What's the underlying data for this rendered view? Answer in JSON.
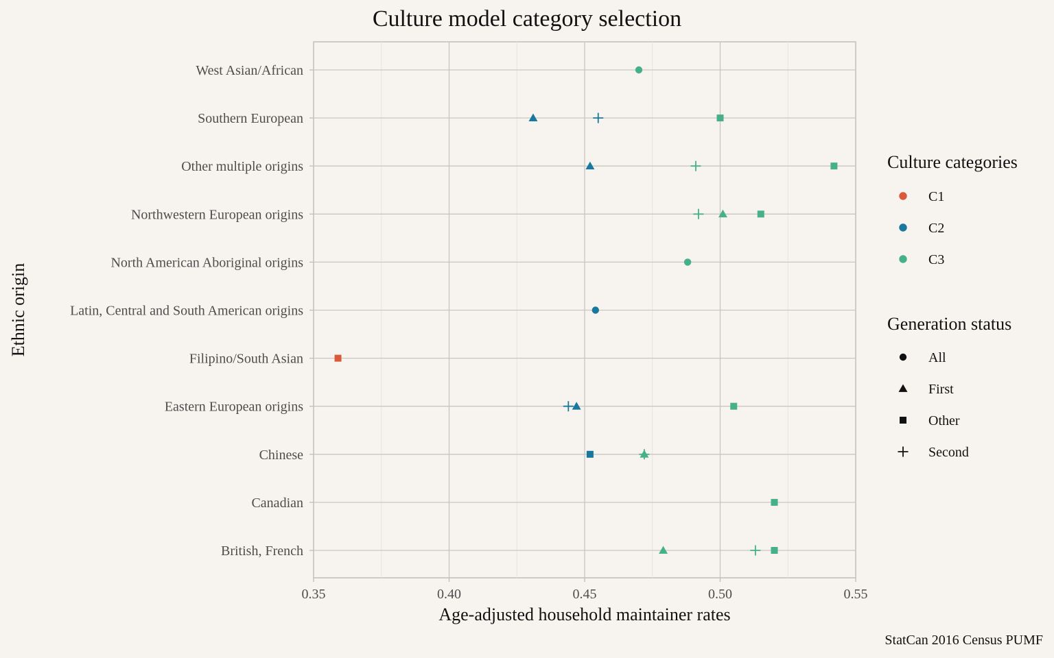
{
  "chart_data": {
    "type": "scatter",
    "title": "Culture model category selection",
    "xlabel": "Age-adjusted household maintainer rates",
    "ylabel": "Ethnic origin",
    "caption": "StatCan 2016 Census PUMF",
    "xlim": [
      0.35,
      0.55
    ],
    "xticks": [
      0.35,
      0.4,
      0.45,
      0.5,
      0.55
    ],
    "xtick_labels": [
      "0.35",
      "0.40",
      "0.45",
      "0.50",
      "0.55"
    ],
    "grid": true,
    "legend_position": "right",
    "categories": [
      "British, French",
      "Canadian",
      "Chinese",
      "Eastern European origins",
      "Filipino/South Asian",
      "Latin, Central and South American origins",
      "North American Aboriginal origins",
      "Northwestern European origins",
      "Other multiple origins",
      "Southern European",
      "West Asian/African"
    ],
    "color_legend": {
      "title": "Culture categories",
      "items": [
        {
          "name": "C1",
          "color": "#d9593a"
        },
        {
          "name": "C2",
          "color": "#19789e"
        },
        {
          "name": "C3",
          "color": "#45b08a"
        }
      ]
    },
    "shape_legend": {
      "title": "Generation status",
      "items": [
        {
          "name": "All",
          "shape": "circle"
        },
        {
          "name": "First",
          "shape": "triangle"
        },
        {
          "name": "Other",
          "shape": "square"
        },
        {
          "name": "Second",
          "shape": "plus"
        }
      ]
    },
    "points": [
      {
        "category": "West Asian/African",
        "x": 0.47,
        "culture": "C3",
        "generation": "All"
      },
      {
        "category": "Southern European",
        "x": 0.431,
        "culture": "C2",
        "generation": "First"
      },
      {
        "category": "Southern European",
        "x": 0.455,
        "culture": "C2",
        "generation": "Second"
      },
      {
        "category": "Southern European",
        "x": 0.5,
        "culture": "C3",
        "generation": "Other"
      },
      {
        "category": "Other multiple origins",
        "x": 0.452,
        "culture": "C2",
        "generation": "First"
      },
      {
        "category": "Other multiple origins",
        "x": 0.491,
        "culture": "C3",
        "generation": "Second"
      },
      {
        "category": "Other multiple origins",
        "x": 0.542,
        "culture": "C3",
        "generation": "Other"
      },
      {
        "category": "Northwestern European origins",
        "x": 0.492,
        "culture": "C3",
        "generation": "Second"
      },
      {
        "category": "Northwestern European origins",
        "x": 0.501,
        "culture": "C3",
        "generation": "First"
      },
      {
        "category": "Northwestern European origins",
        "x": 0.515,
        "culture": "C3",
        "generation": "Other"
      },
      {
        "category": "North American Aboriginal origins",
        "x": 0.488,
        "culture": "C3",
        "generation": "All"
      },
      {
        "category": "Latin, Central and South American origins",
        "x": 0.454,
        "culture": "C2",
        "generation": "All"
      },
      {
        "category": "Filipino/South Asian",
        "x": 0.359,
        "culture": "C1",
        "generation": "Other"
      },
      {
        "category": "Eastern European origins",
        "x": 0.444,
        "culture": "C2",
        "generation": "Second"
      },
      {
        "category": "Eastern European origins",
        "x": 0.447,
        "culture": "C2",
        "generation": "First"
      },
      {
        "category": "Eastern European origins",
        "x": 0.505,
        "culture": "C3",
        "generation": "Other"
      },
      {
        "category": "Chinese",
        "x": 0.452,
        "culture": "C2",
        "generation": "Other"
      },
      {
        "category": "Chinese",
        "x": 0.472,
        "culture": "C3",
        "generation": "Second"
      },
      {
        "category": "Chinese",
        "x": 0.472,
        "culture": "C3",
        "generation": "First"
      },
      {
        "category": "Canadian",
        "x": 0.52,
        "culture": "C3",
        "generation": "Other"
      },
      {
        "category": "British, French",
        "x": 0.479,
        "culture": "C3",
        "generation": "First"
      },
      {
        "category": "British, French",
        "x": 0.513,
        "culture": "C3",
        "generation": "Second"
      },
      {
        "category": "British, French",
        "x": 0.52,
        "culture": "C3",
        "generation": "Other"
      }
    ]
  }
}
